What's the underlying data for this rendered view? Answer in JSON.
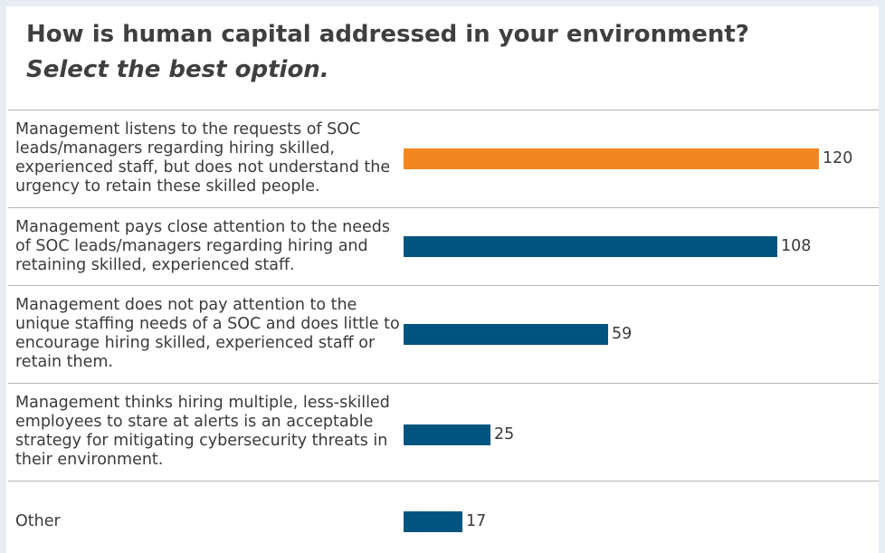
{
  "chart_data": {
    "type": "bar",
    "orientation": "horizontal",
    "title": "How is human capital addressed in your environment?",
    "subtitle": "Select the best option.",
    "categories": [
      "Management listens to the requests of SOC leads/managers regarding hiring skilled, experienced staff, but does not understand the urgency to retain these skilled people.",
      "Management pays close attention to the needs of SOC leads/managers regarding hiring and retaining skilled, experienced staff.",
      "Management does not pay attention to the unique staffing needs of a SOC and does little to encourage hiring skilled, experienced staff or retain them.",
      "Management thinks hiring multiple, less-skilled employees to stare at alerts is an acceptable strategy for mitigating cybersecurity threats in their environment.",
      "Other"
    ],
    "values": [
      120,
      108,
      59,
      25,
      17
    ],
    "value_labels": [
      "120",
      "108",
      "59",
      "25",
      "17"
    ],
    "highlight_index": 0,
    "highlight_color": "#f28721",
    "bar_color": "#005480",
    "xlim": [
      0,
      120
    ],
    "grid": false,
    "legend": "none"
  }
}
